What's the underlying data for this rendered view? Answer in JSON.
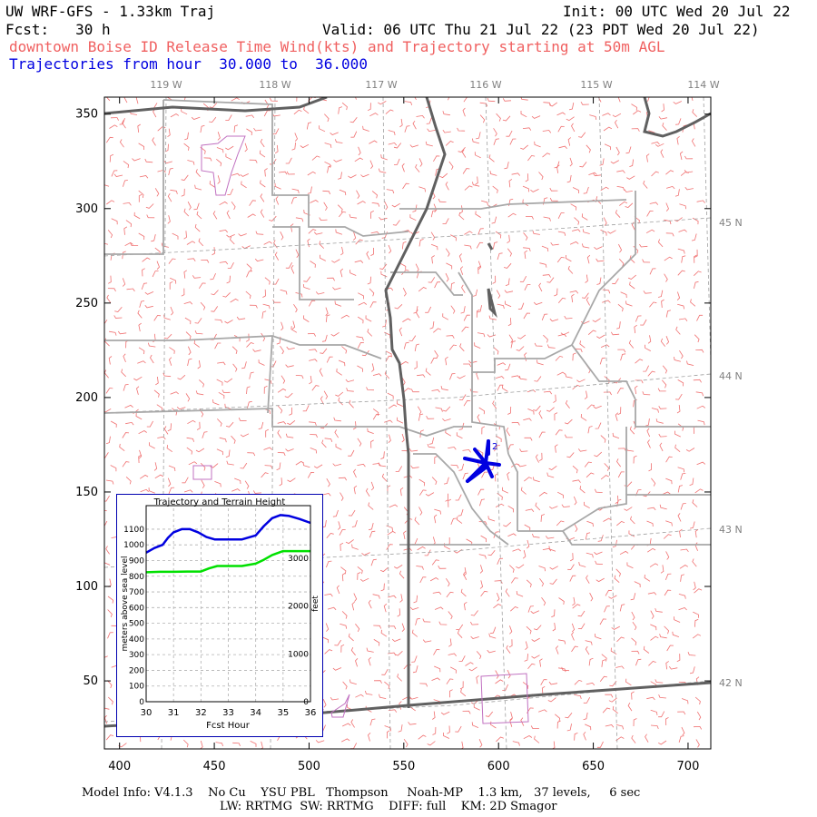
{
  "header": {
    "title": "UW WRF-GFS - 1.33km Traj",
    "init": "Init: 00 UTC Wed 20 Jul 22",
    "fcst": "Fcst:   30 h",
    "valid": "Valid: 06 UTC Thu 21 Jul 22 (23 PDT Wed 20 Jul 22)",
    "subtitle": "downtown Boise ID Release Time Wind(kts) and Trajectory starting at 50m AGL",
    "traj_range": "Trajectories from hour  30.000 to  36.000"
  },
  "footer": {
    "line1": "Model Info: V4.1.3    No Cu    YSU PBL   Thompson     Noah-MP    1.3 km,   37 levels,     6 sec",
    "line2": "LW: RRTMG  SW: RRTMG    DIFF: full    KM: 2D Smagor"
  },
  "colors": {
    "wind_barb": "#f07070",
    "boundary": "#a8a8a8",
    "coast": "#606060",
    "traj": "#0000e0",
    "terrain": "#00e000",
    "graticule": "#a0a0a0",
    "purple": "#c070c0"
  },
  "map": {
    "xticks": [
      400,
      450,
      500,
      550,
      600,
      650,
      700
    ],
    "yticks": [
      50,
      100,
      150,
      200,
      250,
      300,
      350
    ],
    "lon_labels": [
      "119 W",
      "118 W",
      "117 W",
      "116 W",
      "115 W",
      "114 W"
    ],
    "lat_labels": [
      "45 N",
      "44 N",
      "43 N",
      "42 N"
    ],
    "traj_marker": "2"
  },
  "chart_data": {
    "type": "line",
    "title": "Trajectory and Terrain Height",
    "xlabel": "Fcst Hour",
    "ylabel": "meters above sea level",
    "ylabel_right": "feet",
    "xlim": [
      30,
      36
    ],
    "ylim": [
      0,
      1250
    ],
    "xticks": [
      30,
      31,
      32,
      33,
      34,
      35,
      36
    ],
    "yticks": [
      0,
      100,
      200,
      300,
      400,
      500,
      600,
      700,
      800,
      900,
      1000,
      1100
    ],
    "yticks_right": [
      0,
      1000,
      2000,
      3000
    ],
    "grid": true,
    "series": [
      {
        "color": "#0000e0",
        "x": [
          30,
          30.3,
          30.6,
          30.8,
          31,
          31.3,
          31.6,
          31.9,
          32.2,
          32.5,
          33,
          33.5,
          34,
          34.3,
          34.6,
          34.9,
          35.2,
          35.6,
          36
        ],
        "y": [
          950,
          980,
          1000,
          1045,
          1080,
          1100,
          1100,
          1080,
          1050,
          1035,
          1035,
          1035,
          1060,
          1120,
          1170,
          1190,
          1185,
          1165,
          1140
        ]
      },
      {
        "color": "#00e000",
        "x": [
          30,
          30.5,
          31,
          31.5,
          32,
          32.3,
          32.6,
          33,
          33.5,
          34,
          34.3,
          34.6,
          35,
          35.5,
          36
        ],
        "y": [
          825,
          828,
          828,
          830,
          830,
          850,
          865,
          865,
          865,
          880,
          905,
          935,
          960,
          960,
          960
        ]
      }
    ]
  }
}
